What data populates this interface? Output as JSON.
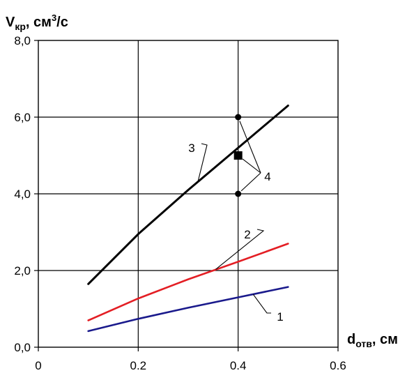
{
  "chart_data": {
    "type": "line",
    "ylabel": {
      "main": "V",
      "sub": "кр",
      "tail": ", см",
      "sup": "3",
      "end": "/с"
    },
    "xlabel": {
      "main": "d",
      "sub": "отв",
      "tail": ", см"
    },
    "xlim": [
      0,
      0.6
    ],
    "ylim": [
      0,
      8
    ],
    "x_ticks": [
      {
        "value": 0,
        "label": "0"
      },
      {
        "value": 0.2,
        "label": "0.2"
      },
      {
        "value": 0.4,
        "label": "0.4"
      },
      {
        "value": 0.6,
        "label": "0.6"
      }
    ],
    "y_ticks": [
      {
        "value": 0,
        "label": "0,0"
      },
      {
        "value": 2,
        "label": "2,0"
      },
      {
        "value": 4,
        "label": "4,0"
      },
      {
        "value": 6,
        "label": "6,0"
      },
      {
        "value": 8,
        "label": "8,0"
      }
    ],
    "grid": true,
    "series": [
      {
        "label": "1",
        "color": "#1a1a8c",
        "x": [
          0.1,
          0.2,
          0.3,
          0.4,
          0.5
        ],
        "y": [
          0.42,
          0.74,
          1.03,
          1.3,
          1.57
        ]
      },
      {
        "label": "2",
        "color": "#e31e24",
        "x": [
          0.1,
          0.2,
          0.3,
          0.4,
          0.5
        ],
        "y": [
          0.7,
          1.27,
          1.77,
          2.23,
          2.7
        ]
      },
      {
        "label": "3",
        "color": "#000000",
        "x": [
          0.1,
          0.2,
          0.3,
          0.4,
          0.5
        ],
        "y": [
          1.65,
          2.95,
          4.1,
          5.2,
          6.3
        ]
      }
    ],
    "points": [
      {
        "x": 0.4,
        "y": 6.0,
        "marker": "circle"
      },
      {
        "x": 0.4,
        "y": 4.0,
        "marker": "circle"
      },
      {
        "x": 0.4,
        "y": 5.0,
        "marker": "square"
      }
    ],
    "point_group_label": "4"
  }
}
